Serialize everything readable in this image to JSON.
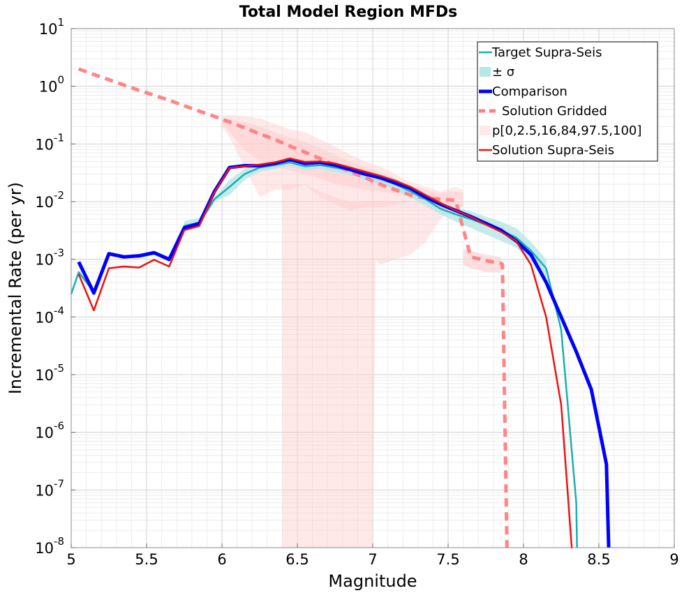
{
  "chart_data": {
    "type": "line",
    "title": "Total Model Region MFDs",
    "xlabel": "Magnitude",
    "ylabel": "Incremental Rate (per yr)",
    "xlim": [
      5,
      9
    ],
    "ylim": [
      1e-08,
      10
    ],
    "yscale": "log",
    "grid": true,
    "legend_position": "top-right",
    "x_ticks": [
      "5",
      "5.5",
      "6",
      "6.5",
      "7",
      "7.5",
      "8",
      "8.5",
      "9"
    ],
    "y_ticks": [
      {
        "base": "10",
        "exp": "-8"
      },
      {
        "base": "10",
        "exp": "-7"
      },
      {
        "base": "10",
        "exp": "-6"
      },
      {
        "base": "10",
        "exp": "-5"
      },
      {
        "base": "10",
        "exp": "-4"
      },
      {
        "base": "10",
        "exp": "-3"
      },
      {
        "base": "10",
        "exp": "-2"
      },
      {
        "base": "10",
        "exp": "-1"
      },
      {
        "base": "10",
        "exp": "0"
      },
      {
        "base": "10",
        "exp": "1"
      }
    ],
    "legend": [
      {
        "label": "Target Supra-Seis",
        "color": "#1aafaf",
        "kind": "line"
      },
      {
        "label": "± σ",
        "color": "#b7e6e6",
        "kind": "band"
      },
      {
        "label": "Comparison",
        "color": "#0000ff",
        "kind": "thickline"
      },
      {
        "label": "Solution Gridded",
        "color": "#ff7f7f",
        "kind": "dashed"
      },
      {
        "label": "p[0,2.5,16,84,97.5,100]",
        "color": "#ffe9e9",
        "kind": "band"
      },
      {
        "label": "Solution Supra-Seis",
        "color": "#ee1111",
        "kind": "line"
      }
    ],
    "colors": {
      "target": "#1aafaf",
      "sigma_band": "#b7e6e6",
      "comparison": "#0000ff",
      "gridded": "#ff7f7f",
      "percentile_band": "#ffcccc",
      "supra": "#ee1111"
    },
    "series": [
      {
        "name": "Target Supra-Seis",
        "x": [
          5.0,
          5.05,
          5.15,
          5.25,
          5.35,
          5.45,
          5.55,
          5.65,
          5.75,
          5.85,
          5.95,
          6.05,
          6.15,
          6.25,
          6.35,
          6.45,
          6.55,
          6.65,
          6.75,
          6.85,
          6.95,
          7.05,
          7.15,
          7.25,
          7.35,
          7.45,
          7.55,
          7.65,
          7.75,
          7.85,
          7.95,
          8.05,
          8.15,
          8.25,
          8.35,
          8.355
        ],
        "y": [
          0.00025,
          0.0006,
          0.00027,
          0.0012,
          0.0011,
          0.0011,
          0.00125,
          0.00095,
          0.0038,
          0.0043,
          0.011,
          0.018,
          0.03,
          0.039,
          0.043,
          0.048,
          0.041,
          0.043,
          0.039,
          0.035,
          0.029,
          0.025,
          0.02,
          0.015,
          0.011,
          0.0075,
          0.006,
          0.005,
          0.004,
          0.0032,
          0.0024,
          0.0014,
          0.0007,
          6e-05,
          6e-08,
          1e-08
        ]
      },
      {
        "name": "± σ",
        "x": [
          5.75,
          5.85,
          5.95,
          6.05,
          6.15,
          6.25,
          6.35,
          6.45,
          6.55,
          6.65,
          6.75,
          6.85,
          6.95,
          7.05,
          7.15,
          7.25,
          7.35,
          7.45,
          7.55,
          7.65,
          7.75,
          7.85,
          7.95,
          8.05,
          8.15
        ],
        "y_low": [
          0.0032,
          0.0036,
          0.01,
          0.013,
          0.024,
          0.033,
          0.037,
          0.042,
          0.035,
          0.037,
          0.033,
          0.029,
          0.024,
          0.02,
          0.016,
          0.012,
          0.0085,
          0.006,
          0.0045,
          0.0035,
          0.0027,
          0.0021,
          0.0016,
          0.0009,
          0.0004
        ],
        "y_high": [
          0.0046,
          0.0052,
          0.012,
          0.024,
          0.037,
          0.046,
          0.05,
          0.055,
          0.048,
          0.05,
          0.045,
          0.041,
          0.034,
          0.03,
          0.025,
          0.019,
          0.014,
          0.0095,
          0.008,
          0.0068,
          0.0055,
          0.0045,
          0.0035,
          0.002,
          0.001
        ]
      },
      {
        "name": "Comparison",
        "x": [
          5.05,
          5.15,
          5.25,
          5.35,
          5.45,
          5.55,
          5.65,
          5.75,
          5.85,
          5.95,
          6.05,
          6.15,
          6.25,
          6.35,
          6.45,
          6.55,
          6.65,
          6.75,
          6.85,
          6.95,
          7.05,
          7.15,
          7.25,
          7.35,
          7.45,
          7.55,
          7.65,
          7.75,
          7.85,
          7.95,
          8.05,
          8.15,
          8.25,
          8.35,
          8.45,
          8.55,
          8.565
        ],
        "y": [
          0.0009,
          0.00026,
          0.00125,
          0.0011,
          0.00115,
          0.0013,
          0.001,
          0.0035,
          0.0042,
          0.015,
          0.039,
          0.042,
          0.042,
          0.046,
          0.054,
          0.046,
          0.048,
          0.043,
          0.036,
          0.03,
          0.026,
          0.021,
          0.017,
          0.012,
          0.009,
          0.007,
          0.0055,
          0.0042,
          0.0032,
          0.0021,
          0.0012,
          0.0004,
          0.0001,
          2.5e-05,
          5.5e-06,
          2.8e-07,
          1e-08
        ]
      },
      {
        "name": "Solution Gridded",
        "x": [
          5.05,
          5.15,
          5.25,
          5.35,
          5.45,
          5.55,
          5.65,
          5.75,
          5.85,
          5.95,
          6.05,
          6.15,
          6.25,
          6.35,
          6.45,
          6.55,
          6.65,
          6.75,
          6.85,
          6.95,
          7.05,
          7.15,
          7.25,
          7.35,
          7.45,
          7.55,
          7.65,
          7.75,
          7.85,
          7.86,
          7.89
        ],
        "y": [
          2.0,
          1.6,
          1.3,
          1.05,
          0.85,
          0.7,
          0.57,
          0.46,
          0.37,
          0.3,
          0.24,
          0.19,
          0.15,
          0.12,
          0.092,
          0.072,
          0.056,
          0.043,
          0.033,
          0.026,
          0.02,
          0.016,
          0.013,
          0.0115,
          0.011,
          0.0105,
          0.0011,
          0.00095,
          0.00085,
          0.00082,
          1e-08
        ]
      },
      {
        "name": "p[0,2.5,16,84,97.5,100]",
        "x": [
          6.0,
          6.05,
          6.15,
          6.25,
          6.35,
          6.45,
          6.55,
          6.65,
          6.75,
          6.85,
          6.95,
          7.05,
          7.15,
          7.25,
          7.35,
          7.45,
          7.55,
          7.6
        ],
        "bands": [
          {
            "y_low": [
              0.2,
              0.13,
              0.04,
              0.012,
              0.016,
              0.016,
              0.02,
              0.012,
              0.009,
              0.007,
              0.008,
              0.008,
              0.009,
              0.01,
              0.009,
              0.008,
              0.008,
              0.008
            ],
            "y_high": [
              0.3,
              0.32,
              0.3,
              0.28,
              0.22,
              0.18,
              0.16,
              0.12,
              0.09,
              0.065,
              0.05,
              0.04,
              0.03,
              0.022,
              0.018,
              0.015,
              0.018,
              0.016
            ]
          },
          {
            "y_low": [
              0.22,
              0.16,
              0.08,
              0.05,
              0.04,
              0.035,
              0.03,
              0.025,
              0.02,
              0.018,
              0.016,
              0.015,
              0.014,
              0.013,
              0.012,
              0.011,
              0.011,
              0.011
            ],
            "y_high": [
              0.27,
              0.27,
              0.24,
              0.2,
              0.16,
              0.13,
              0.11,
              0.085,
              0.065,
              0.05,
              0.04,
              0.032,
              0.025,
              0.019,
              0.016,
              0.014,
              0.015,
              0.014
            ]
          }
        ],
        "tail": {
          "x": [
            6.4,
            6.45,
            6.55,
            6.65,
            6.75,
            6.85,
            6.95,
            7.0,
            7.02,
            7.05,
            7.15,
            7.25,
            7.35,
            7.45,
            7.55,
            7.6
          ],
          "y_low": [
            1e-08,
            1e-08,
            1e-08,
            1e-08,
            1e-08,
            1e-08,
            1e-08,
            1e-08,
            0.001,
            0.0008,
            0.001,
            0.0012,
            0.002,
            0.005,
            0.008,
            0.008
          ],
          "y_high": [
            0.02,
            0.02,
            0.02,
            0.015,
            0.012,
            0.01,
            0.01,
            0.01,
            0.01,
            0.01,
            0.01,
            0.01,
            0.01,
            0.01,
            0.01,
            0.01
          ]
        },
        "secondary": {
          "x": [
            7.6,
            7.65,
            7.75,
            7.85
          ],
          "y_low": [
            0.0008,
            0.0007,
            0.0006,
            0.0006
          ],
          "y_high": [
            0.0015,
            0.0014,
            0.0012,
            0.0011
          ]
        }
      },
      {
        "name": "Solution Supra-Seis",
        "x": [
          5.05,
          5.15,
          5.25,
          5.35,
          5.45,
          5.55,
          5.65,
          5.75,
          5.85,
          5.95,
          6.05,
          6.15,
          6.25,
          6.35,
          6.45,
          6.55,
          6.65,
          6.75,
          6.85,
          6.95,
          7.05,
          7.15,
          7.25,
          7.35,
          7.45,
          7.55,
          7.65,
          7.75,
          7.85,
          7.95,
          8.05,
          8.15,
          8.25,
          8.32,
          8.325
        ],
        "y": [
          0.00055,
          0.00013,
          0.0007,
          0.00075,
          0.00072,
          0.00098,
          0.00075,
          0.0032,
          0.0038,
          0.0145,
          0.038,
          0.041,
          0.044,
          0.048,
          0.056,
          0.049,
          0.05,
          0.046,
          0.039,
          0.033,
          0.028,
          0.023,
          0.018,
          0.013,
          0.0095,
          0.007,
          0.0055,
          0.004,
          0.003,
          0.0021,
          0.0008,
          0.0001,
          3e-06,
          1e-08,
          1e-08
        ]
      }
    ]
  }
}
